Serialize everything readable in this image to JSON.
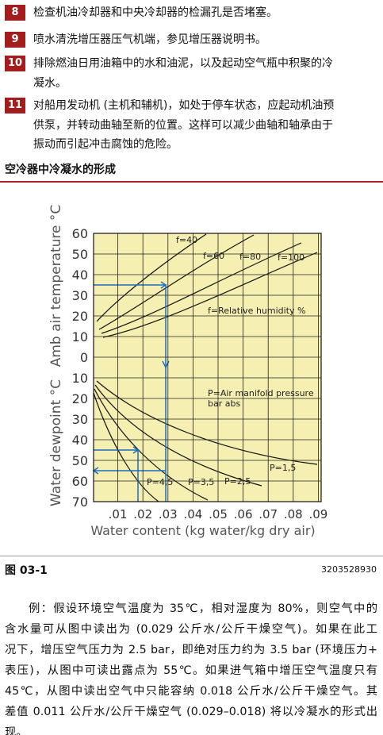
{
  "items": [
    {
      "num": "8",
      "lines": [
        "检查机油冷却器和中央冷却器的检漏孔是否堵塞。"
      ]
    },
    {
      "num": "9",
      "lines": [
        "喷水清洗增压器压气机端，参见增压器说明书。"
      ]
    },
    {
      "num": "10",
      "lines": [
        "排除燃油日用油箱中的水和油泥，以及起动空气瓶中积聚的冷",
        "凝水。"
      ]
    },
    {
      "num": "11",
      "lines": [
        "对船用发动机 (主机和辅机)，如处于停车状态，应起动机油预",
        "供泵，并转动曲轴至新的位置。这样可以减少曲轴和轴承由于",
        "振动而引起冲击腐蚀的危险。"
      ]
    }
  ],
  "section_title": "空冷器中冷凝水的形成",
  "figure": {
    "temp_axis_title": "Amb air temperature °C",
    "dew_axis_title": "Water dewpoint °C",
    "x_axis_title": "Water content (kg water/kg dry air)",
    "temp_ticks": [
      60,
      50,
      40,
      30,
      20,
      10,
      0
    ],
    "dew_ticks": [
      10,
      20,
      30,
      40,
      50,
      60,
      70
    ],
    "xticks": [
      {
        "value": 0.01,
        "label": ".01"
      },
      {
        "value": 0.02,
        "label": ".02"
      },
      {
        "value": 0.03,
        "label": ".03"
      },
      {
        "value": 0.04,
        "label": ".04"
      },
      {
        "value": 0.05,
        "label": ".05"
      },
      {
        "value": 0.06,
        "label": ".06"
      },
      {
        "value": 0.07,
        "label": ".07"
      },
      {
        "value": 0.08,
        "label": ".08"
      },
      {
        "value": 0.09,
        "label": ".09"
      }
    ],
    "humidity_labels": [
      "f=40",
      "f=60",
      "f=80",
      "f=100"
    ],
    "humidity_note": "f=Relative humidity %",
    "pressure_note": [
      "P=Air manifold pressure",
      "bar abs"
    ],
    "pressure_labels": [
      "P=1,5",
      "P=2,5",
      "P=3,5",
      "P=4,5"
    ]
  },
  "caption": {
    "label": "图 03-1",
    "code": "3203528930"
  },
  "paragraph": [
    "例：假设环境空气温度为 35℃，相对湿度为 80%，则空气中的",
    "含水量可从图中读出为 (0.029 公斤水/公斤干燥空气)。如果在此工",
    "况下，增压空气压力为 2.5 bar，即绝对压力约为 3.5 bar (环境压力+",
    "表压)，从图中可读出露点为 55℃。如果进气箱中增压空气温度只有",
    "45℃，从图中读出空气中只能容纳 0.018 公斤水/公斤干燥空气。其",
    "差值 0.011 公斤水/公斤干燥空气 (0.029–0.018) 将以冷凝水的形式出",
    "现。"
  ]
}
